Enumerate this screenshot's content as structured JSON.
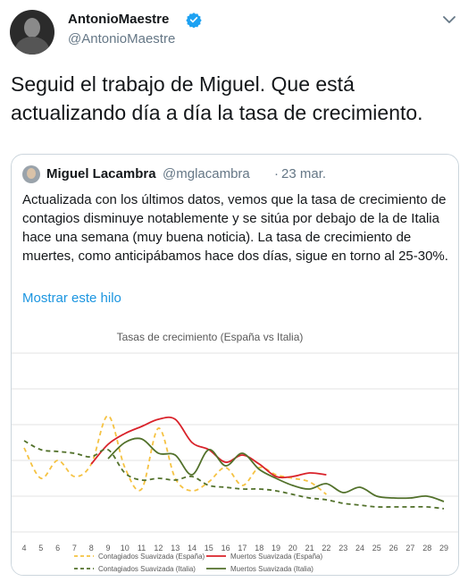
{
  "tweet": {
    "author": {
      "name": "AntonioMaestre",
      "handle": "@AntonioMaestre"
    },
    "text": "Seguid el trabajo de Miguel. Que está actualizando día a día la tasa de crecimiento."
  },
  "quoted": {
    "author": {
      "name": "Miguel Lacambra",
      "handle": "@mglacambra"
    },
    "separator": "·",
    "date": "23 mar.",
    "text": "Actualizada con los últimos datos, vemos que la tasa de crecimiento de contagios disminuye notablemente y se sitúa por debajo de la de Italia hace una semana (muy buena noticia). La tasa de crecimiento de muertes, como anticipábamos hace dos días, sigue en torno al 25-30%.",
    "show_thread_label": "Mostrar este hilo"
  },
  "icons": {
    "verified": "verified-badge-icon",
    "caret": "chevron-down-icon"
  },
  "colors": {
    "link": "#1b95e0",
    "verified": "#1da1f2",
    "orange": "#f5c242",
    "red": "#d9222a",
    "green": "#52712b"
  },
  "chart_data": {
    "type": "line",
    "title": "Tasas de crecimiento (España vs Italia)",
    "x": [
      4,
      5,
      6,
      7,
      8,
      9,
      10,
      11,
      12,
      13,
      14,
      15,
      16,
      17,
      18,
      19,
      20,
      21,
      22,
      23,
      24,
      25,
      26,
      27,
      28,
      29
    ],
    "xticks": [
      "4",
      "5",
      "6",
      "7",
      "8",
      "9",
      "10",
      "11",
      "12",
      "13",
      "14",
      "15",
      "16",
      "17",
      "18",
      "19",
      "20",
      "21",
      "22",
      "23",
      "24",
      "25",
      "26",
      "27",
      "28",
      "29"
    ],
    "ylim": [
      0,
      100
    ],
    "grid": true,
    "legend_position": "bottom",
    "series": [
      {
        "name": "Contagiados Suavizada (España)",
        "color": "#f5c242",
        "dash": true,
        "x": [
          4,
          5,
          6,
          7,
          8,
          9,
          10,
          11,
          12,
          13,
          14,
          15,
          16,
          17,
          18,
          19,
          20,
          21,
          22
        ],
        "values": [
          47,
          30,
          40,
          31,
          38,
          65,
          36,
          24,
          58,
          30,
          23,
          28,
          36,
          26,
          36,
          32,
          30,
          28,
          21
        ]
      },
      {
        "name": "Muertos Suavizada (España)",
        "color": "#d9222a",
        "dash": false,
        "x": [
          8,
          9,
          10,
          11,
          12,
          13,
          14,
          15,
          16,
          17,
          18,
          19,
          20,
          21,
          22
        ],
        "values": [
          38,
          49,
          55,
          59,
          63,
          63,
          50,
          46,
          39,
          43,
          38,
          31,
          31,
          33,
          32
        ]
      },
      {
        "name": "Contagiados Suavizada (Italia)",
        "color": "#52712b",
        "dash": true,
        "x": [
          4,
          5,
          6,
          7,
          8,
          9,
          10,
          11,
          12,
          13,
          14,
          15,
          16,
          17,
          18,
          19,
          20,
          21,
          22,
          23,
          24,
          25,
          26,
          27,
          28,
          29
        ],
        "values": [
          51,
          46,
          45,
          44,
          42,
          46,
          33,
          29,
          30,
          29,
          31,
          26,
          25,
          24,
          24,
          23,
          21,
          19,
          18,
          16,
          15,
          14,
          14,
          14,
          14,
          13
        ]
      },
      {
        "name": "Muertos Suavizada (Italia)",
        "color": "#52712b",
        "dash": false,
        "x": [
          9,
          10,
          11,
          12,
          13,
          14,
          15,
          16,
          17,
          18,
          19,
          20,
          21,
          22,
          23,
          24,
          25,
          26,
          27,
          28,
          29
        ],
        "values": [
          41,
          50,
          52,
          44,
          43,
          32,
          46,
          37,
          44,
          35,
          30,
          26,
          24,
          27,
          22,
          25,
          20,
          19,
          19,
          20,
          17
        ]
      }
    ]
  }
}
